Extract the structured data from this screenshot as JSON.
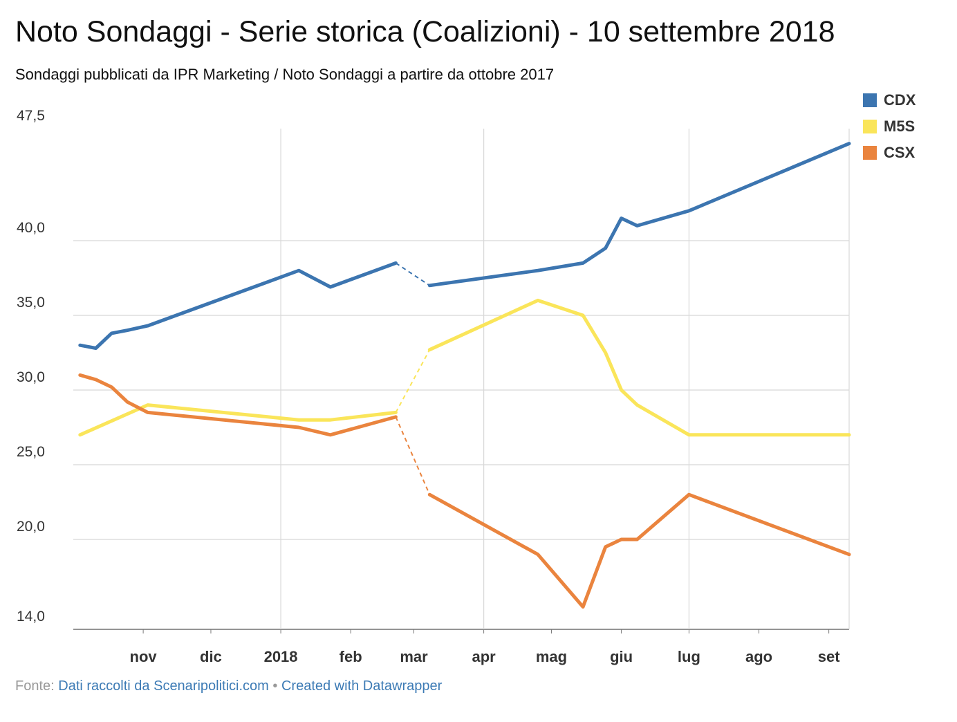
{
  "title": "Noto Sondaggi - Serie storica (Coalizioni) - 10 settembre 2018",
  "subtitle": "Sondaggi pubblicati da IPR Marketing / Noto Sondaggi a partire da ottobre 2017",
  "footer": {
    "source_label": "Fonte:",
    "source_link": "Dati raccolti da Scenaripolitici.com",
    "separator": "•",
    "created_with": "Created with Datawrapper"
  },
  "chart_data": {
    "type": "line",
    "title": "Noto Sondaggi - Serie storica (Coalizioni) - 10 settembre 2018",
    "xlabel": "",
    "ylabel": "",
    "ylim": [
      14,
      47.5
    ],
    "xlim": [
      "2017-10-01",
      "2018-09-10"
    ],
    "y_ticks": [
      "47,5",
      "40,0",
      "35,0",
      "30,0",
      "25,0",
      "20,0",
      "14,0"
    ],
    "y_tick_values": [
      47.5,
      40,
      35,
      30,
      25,
      20,
      14
    ],
    "x_ticks": [
      {
        "label": "nov",
        "date": "2017-11-01"
      },
      {
        "label": "dic",
        "date": "2017-12-01"
      },
      {
        "label": "2018",
        "date": "2018-01-01"
      },
      {
        "label": "feb",
        "date": "2018-02-01"
      },
      {
        "label": "mar",
        "date": "2018-03-01"
      },
      {
        "label": "apr",
        "date": "2018-04-01"
      },
      {
        "label": "mag",
        "date": "2018-05-01"
      },
      {
        "label": "giu",
        "date": "2018-06-01"
      },
      {
        "label": "lug",
        "date": "2018-07-01"
      },
      {
        "label": "ago",
        "date": "2018-08-01"
      },
      {
        "label": "set",
        "date": "2018-09-01"
      }
    ],
    "vertical_grid_dates": [
      "2018-01-01",
      "2018-04-01",
      "2018-07-01",
      "2018-09-10"
    ],
    "grid": true,
    "legend_position": "top-right",
    "gap": {
      "from": "2018-02-21",
      "to": "2018-03-08",
      "style": "dashed"
    },
    "series": [
      {
        "name": "CDX",
        "color": "#3c75b0",
        "points": [
          [
            "2017-10-04",
            33.0
          ],
          [
            "2017-10-11",
            32.8
          ],
          [
            "2017-10-18",
            33.8
          ],
          [
            "2017-10-25",
            34.0
          ],
          [
            "2017-11-03",
            34.3
          ],
          [
            "2018-01-09",
            38.0
          ],
          [
            "2018-01-23",
            36.9
          ],
          [
            "2018-02-21",
            38.5
          ],
          [
            "2018-03-08",
            37.0
          ],
          [
            "2018-04-25",
            38.0
          ],
          [
            "2018-05-15",
            38.5
          ],
          [
            "2018-05-25",
            39.5
          ],
          [
            "2018-06-01",
            41.5
          ],
          [
            "2018-06-08",
            41.0
          ],
          [
            "2018-07-01",
            42.0
          ],
          [
            "2018-09-10",
            46.5
          ]
        ]
      },
      {
        "name": "M5S",
        "color": "#fae55a",
        "points": [
          [
            "2017-10-04",
            27.0
          ],
          [
            "2017-11-03",
            29.0
          ],
          [
            "2018-01-09",
            28.0
          ],
          [
            "2018-01-23",
            28.0
          ],
          [
            "2018-02-21",
            28.5
          ],
          [
            "2018-03-08",
            32.7
          ],
          [
            "2018-04-25",
            36.0
          ],
          [
            "2018-05-15",
            35.0
          ],
          [
            "2018-05-25",
            32.5
          ],
          [
            "2018-06-01",
            30.0
          ],
          [
            "2018-06-08",
            29.0
          ],
          [
            "2018-07-01",
            27.0
          ],
          [
            "2018-09-10",
            27.0
          ]
        ]
      },
      {
        "name": "CSX",
        "color": "#ea843e",
        "points": [
          [
            "2017-10-04",
            31.0
          ],
          [
            "2017-10-11",
            30.7
          ],
          [
            "2017-10-18",
            30.2
          ],
          [
            "2017-10-25",
            29.2
          ],
          [
            "2017-11-03",
            28.5
          ],
          [
            "2018-01-09",
            27.5
          ],
          [
            "2018-01-23",
            27.0
          ],
          [
            "2018-02-21",
            28.2
          ],
          [
            "2018-03-08",
            23.0
          ],
          [
            "2018-04-25",
            19.0
          ],
          [
            "2018-05-15",
            15.5
          ],
          [
            "2018-05-25",
            19.5
          ],
          [
            "2018-06-01",
            20.0
          ],
          [
            "2018-06-08",
            20.0
          ],
          [
            "2018-07-01",
            23.0
          ],
          [
            "2018-09-10",
            19.0
          ]
        ]
      }
    ]
  }
}
